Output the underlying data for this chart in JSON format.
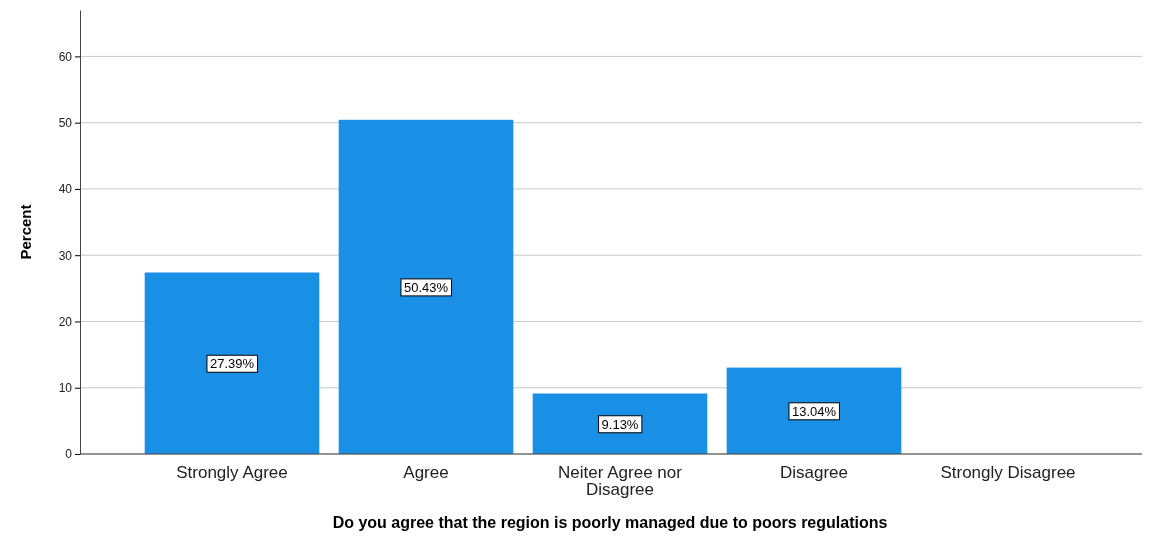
{
  "chart_data": {
    "type": "bar",
    "xlabel": "Do you agree that the region is poorly managed due to poors regulations",
    "ylabel": "Percent",
    "categories": [
      "Strongly Agree",
      "Agree",
      "Neiter Agree nor Disagree",
      "Disagree",
      "Strongly Disagree"
    ],
    "values": [
      27.39,
      50.43,
      9.13,
      13.04,
      0
    ],
    "value_labels": [
      "27.39%",
      "50.43%",
      "9.13%",
      "13.04%",
      null
    ],
    "color": "#1a8fe6",
    "ylim": [
      0,
      67
    ],
    "yticks": [
      0,
      10,
      20,
      30,
      40,
      50,
      60
    ],
    "grid": "y"
  }
}
